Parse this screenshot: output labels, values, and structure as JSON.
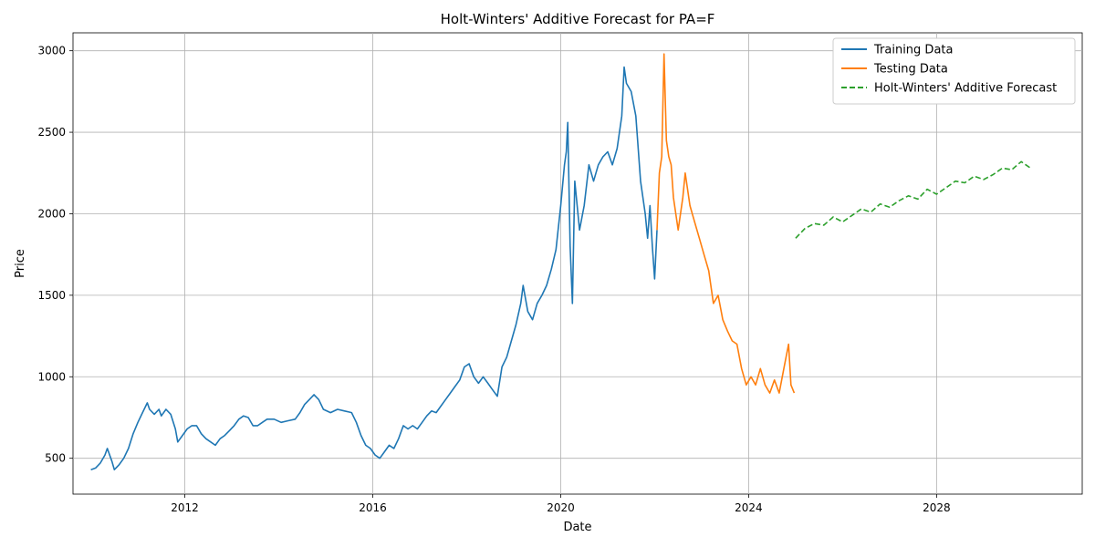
{
  "chart_data": {
    "type": "line",
    "title": "Holt-Winters' Additive Forecast for PA=F",
    "xlabel": "Date",
    "ylabel": "Price",
    "xlim": [
      2009.62,
      2031.1
    ],
    "ylim": [
      280,
      3110
    ],
    "x_ticks": [
      2012,
      2016,
      2020,
      2024,
      2028
    ],
    "y_ticks": [
      500,
      1000,
      1500,
      2000,
      2500,
      3000
    ],
    "grid": true,
    "legend_position": "top-right",
    "series": [
      {
        "name": "Training Data",
        "color": "#1f77b4",
        "style": "solid",
        "points": [
          [
            2010.0,
            430
          ],
          [
            2010.1,
            440
          ],
          [
            2010.2,
            470
          ],
          [
            2010.3,
            520
          ],
          [
            2010.35,
            560
          ],
          [
            2010.45,
            480
          ],
          [
            2010.5,
            430
          ],
          [
            2010.6,
            460
          ],
          [
            2010.7,
            500
          ],
          [
            2010.8,
            560
          ],
          [
            2010.9,
            650
          ],
          [
            2011.0,
            720
          ],
          [
            2011.1,
            780
          ],
          [
            2011.2,
            840
          ],
          [
            2011.25,
            800
          ],
          [
            2011.35,
            770
          ],
          [
            2011.45,
            800
          ],
          [
            2011.5,
            760
          ],
          [
            2011.6,
            800
          ],
          [
            2011.7,
            770
          ],
          [
            2011.8,
            680
          ],
          [
            2011.85,
            600
          ],
          [
            2011.95,
            640
          ],
          [
            2012.05,
            680
          ],
          [
            2012.15,
            700
          ],
          [
            2012.25,
            700
          ],
          [
            2012.35,
            650
          ],
          [
            2012.45,
            620
          ],
          [
            2012.55,
            600
          ],
          [
            2012.65,
            580
          ],
          [
            2012.75,
            620
          ],
          [
            2012.85,
            640
          ],
          [
            2012.95,
            670
          ],
          [
            2013.05,
            700
          ],
          [
            2013.15,
            740
          ],
          [
            2013.25,
            760
          ],
          [
            2013.35,
            750
          ],
          [
            2013.45,
            700
          ],
          [
            2013.55,
            700
          ],
          [
            2013.65,
            720
          ],
          [
            2013.75,
            740
          ],
          [
            2013.9,
            740
          ],
          [
            2014.05,
            720
          ],
          [
            2014.2,
            730
          ],
          [
            2014.35,
            740
          ],
          [
            2014.45,
            780
          ],
          [
            2014.55,
            830
          ],
          [
            2014.65,
            860
          ],
          [
            2014.75,
            890
          ],
          [
            2014.85,
            860
          ],
          [
            2014.95,
            800
          ],
          [
            2015.1,
            780
          ],
          [
            2015.25,
            800
          ],
          [
            2015.4,
            790
          ],
          [
            2015.55,
            780
          ],
          [
            2015.65,
            720
          ],
          [
            2015.75,
            640
          ],
          [
            2015.85,
            580
          ],
          [
            2015.95,
            560
          ],
          [
            2016.05,
            520
          ],
          [
            2016.15,
            500
          ],
          [
            2016.25,
            540
          ],
          [
            2016.35,
            580
          ],
          [
            2016.45,
            560
          ],
          [
            2016.55,
            620
          ],
          [
            2016.65,
            700
          ],
          [
            2016.75,
            680
          ],
          [
            2016.85,
            700
          ],
          [
            2016.95,
            680
          ],
          [
            2017.05,
            720
          ],
          [
            2017.15,
            760
          ],
          [
            2017.25,
            790
          ],
          [
            2017.35,
            780
          ],
          [
            2017.45,
            820
          ],
          [
            2017.55,
            860
          ],
          [
            2017.65,
            900
          ],
          [
            2017.75,
            940
          ],
          [
            2017.85,
            980
          ],
          [
            2017.95,
            1060
          ],
          [
            2018.05,
            1080
          ],
          [
            2018.15,
            1000
          ],
          [
            2018.25,
            960
          ],
          [
            2018.35,
            1000
          ],
          [
            2018.45,
            960
          ],
          [
            2018.55,
            920
          ],
          [
            2018.65,
            880
          ],
          [
            2018.75,
            1060
          ],
          [
            2018.85,
            1120
          ],
          [
            2018.95,
            1220
          ],
          [
            2019.05,
            1320
          ],
          [
            2019.15,
            1450
          ],
          [
            2019.2,
            1560
          ],
          [
            2019.3,
            1400
          ],
          [
            2019.4,
            1350
          ],
          [
            2019.5,
            1450
          ],
          [
            2019.6,
            1500
          ],
          [
            2019.7,
            1560
          ],
          [
            2019.8,
            1660
          ],
          [
            2019.9,
            1780
          ],
          [
            2020.0,
            2050
          ],
          [
            2020.08,
            2300
          ],
          [
            2020.12,
            2380
          ],
          [
            2020.15,
            2560
          ],
          [
            2020.2,
            1800
          ],
          [
            2020.25,
            1450
          ],
          [
            2020.3,
            2200
          ],
          [
            2020.4,
            1900
          ],
          [
            2020.5,
            2050
          ],
          [
            2020.6,
            2300
          ],
          [
            2020.7,
            2200
          ],
          [
            2020.8,
            2300
          ],
          [
            2020.9,
            2350
          ],
          [
            2021.0,
            2380
          ],
          [
            2021.1,
            2300
          ],
          [
            2021.2,
            2400
          ],
          [
            2021.3,
            2600
          ],
          [
            2021.35,
            2900
          ],
          [
            2021.4,
            2800
          ],
          [
            2021.5,
            2750
          ],
          [
            2021.6,
            2600
          ],
          [
            2021.7,
            2200
          ],
          [
            2021.8,
            2000
          ],
          [
            2021.85,
            1850
          ],
          [
            2021.9,
            2050
          ],
          [
            2021.95,
            1800
          ],
          [
            2022.0,
            1600
          ],
          [
            2022.05,
            1900
          ]
        ]
      },
      {
        "name": "Testing Data",
        "color": "#ff7f0e",
        "style": "solid",
        "points": [
          [
            2022.05,
            1900
          ],
          [
            2022.1,
            2250
          ],
          [
            2022.15,
            2350
          ],
          [
            2022.2,
            2980
          ],
          [
            2022.25,
            2450
          ],
          [
            2022.3,
            2350
          ],
          [
            2022.35,
            2300
          ],
          [
            2022.4,
            2100
          ],
          [
            2022.5,
            1900
          ],
          [
            2022.6,
            2100
          ],
          [
            2022.65,
            2250
          ],
          [
            2022.75,
            2050
          ],
          [
            2022.85,
            1950
          ],
          [
            2022.95,
            1850
          ],
          [
            2023.05,
            1750
          ],
          [
            2023.15,
            1650
          ],
          [
            2023.25,
            1450
          ],
          [
            2023.35,
            1500
          ],
          [
            2023.45,
            1350
          ],
          [
            2023.55,
            1280
          ],
          [
            2023.65,
            1220
          ],
          [
            2023.75,
            1200
          ],
          [
            2023.85,
            1050
          ],
          [
            2023.95,
            950
          ],
          [
            2024.05,
            1000
          ],
          [
            2024.15,
            950
          ],
          [
            2024.25,
            1050
          ],
          [
            2024.35,
            950
          ],
          [
            2024.45,
            900
          ],
          [
            2024.55,
            980
          ],
          [
            2024.65,
            900
          ],
          [
            2024.75,
            1050
          ],
          [
            2024.85,
            1200
          ],
          [
            2024.9,
            950
          ],
          [
            2024.97,
            900
          ]
        ]
      },
      {
        "name": "Holt-Winters' Additive Forecast",
        "color": "#2ca02c",
        "style": "dashed",
        "points": [
          [
            2025.0,
            1850
          ],
          [
            2025.2,
            1910
          ],
          [
            2025.4,
            1940
          ],
          [
            2025.6,
            1930
          ],
          [
            2025.8,
            1980
          ],
          [
            2026.0,
            1950
          ],
          [
            2026.2,
            1990
          ],
          [
            2026.4,
            2030
          ],
          [
            2026.6,
            2010
          ],
          [
            2026.8,
            2060
          ],
          [
            2027.0,
            2040
          ],
          [
            2027.2,
            2080
          ],
          [
            2027.4,
            2110
          ],
          [
            2027.6,
            2090
          ],
          [
            2027.8,
            2150
          ],
          [
            2028.0,
            2120
          ],
          [
            2028.2,
            2160
          ],
          [
            2028.4,
            2200
          ],
          [
            2028.6,
            2190
          ],
          [
            2028.8,
            2230
          ],
          [
            2029.0,
            2210
          ],
          [
            2029.2,
            2240
          ],
          [
            2029.4,
            2280
          ],
          [
            2029.6,
            2270
          ],
          [
            2029.8,
            2320
          ],
          [
            2030.0,
            2280
          ]
        ]
      }
    ]
  }
}
